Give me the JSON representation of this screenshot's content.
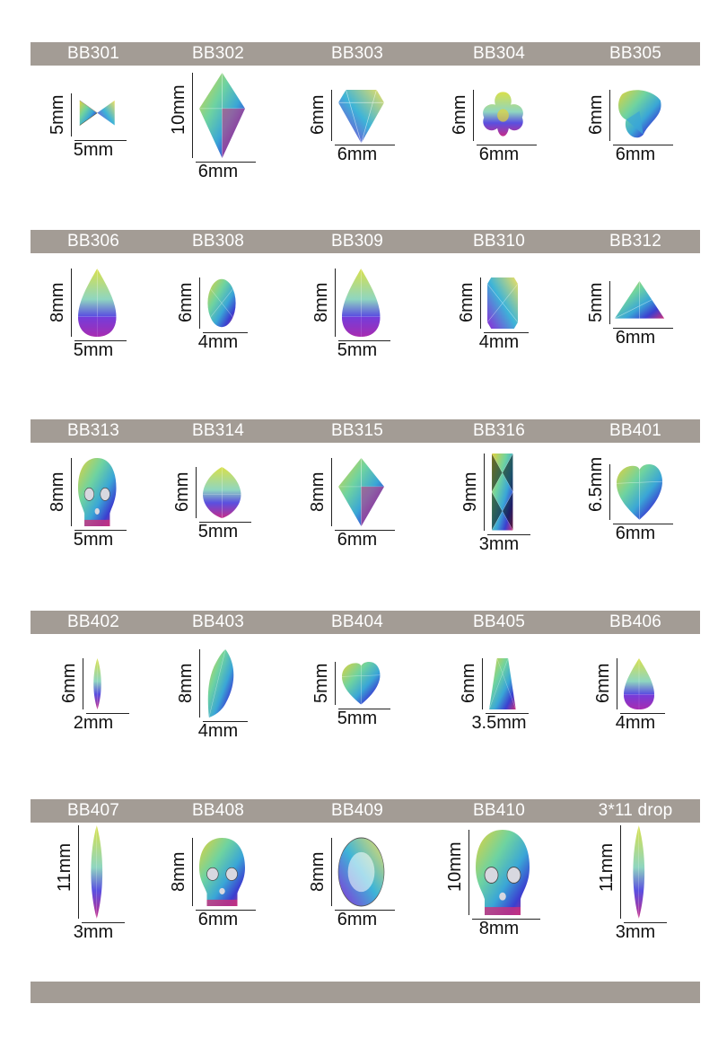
{
  "colors": {
    "band": "#a39c95",
    "band_text": "#ffffff",
    "gem_gold": "#e3d23a",
    "gem_green": "#6fd3a0",
    "gem_cyan": "#3aa6d6",
    "gem_blue": "#3b3fd0",
    "gem_magenta": "#d0307a",
    "gem_purple": "#8a2bd8"
  },
  "rows": [
    {
      "items": [
        {
          "code": "BB301",
          "height": "5mm",
          "width": "5mm",
          "shape": "bowtie"
        },
        {
          "code": "BB302",
          "height": "10mm",
          "width": "6mm",
          "shape": "kite"
        },
        {
          "code": "BB303",
          "height": "6mm",
          "width": "6mm",
          "shape": "diamond"
        },
        {
          "code": "BB304",
          "height": "6mm",
          "width": "6mm",
          "shape": "flower"
        },
        {
          "code": "BB305",
          "height": "6mm",
          "width": "6mm",
          "shape": "trefoil"
        }
      ]
    },
    {
      "items": [
        {
          "code": "BB306",
          "height": "8mm",
          "width": "5mm",
          "shape": "drop"
        },
        {
          "code": "BB308",
          "height": "6mm",
          "width": "4mm",
          "shape": "oval"
        },
        {
          "code": "BB309",
          "height": "8mm",
          "width": "5mm",
          "shape": "drop"
        },
        {
          "code": "BB310",
          "height": "6mm",
          "width": "4mm",
          "shape": "rect"
        },
        {
          "code": "BB312",
          "height": "5mm",
          "width": "6mm",
          "shape": "triangle"
        }
      ]
    },
    {
      "items": [
        {
          "code": "BB313",
          "height": "8mm",
          "width": "5mm",
          "shape": "skull"
        },
        {
          "code": "BB314",
          "height": "6mm",
          "width": "5mm",
          "shape": "marquise"
        },
        {
          "code": "BB315",
          "height": "8mm",
          "width": "6mm",
          "shape": "kite"
        },
        {
          "code": "BB316",
          "height": "9mm",
          "width": "3mm",
          "shape": "baguette"
        },
        {
          "code": "BB401",
          "height": "6.5mm",
          "width": "6mm",
          "shape": "heart"
        }
      ]
    },
    {
      "items": [
        {
          "code": "BB402",
          "height": "6mm",
          "width": "2mm",
          "shape": "navette"
        },
        {
          "code": "BB403",
          "height": "8mm",
          "width": "4mm",
          "shape": "leaf"
        },
        {
          "code": "BB404",
          "height": "5mm",
          "width": "5mm",
          "shape": "heart"
        },
        {
          "code": "BB405",
          "height": "6mm",
          "width": "3.5mm",
          "shape": "trapezoid"
        },
        {
          "code": "BB406",
          "height": "6mm",
          "width": "4mm",
          "shape": "drop"
        }
      ]
    },
    {
      "items": [
        {
          "code": "BB407",
          "height": "11mm",
          "width": "3mm",
          "shape": "navette"
        },
        {
          "code": "BB408",
          "height": "8mm",
          "width": "6mm",
          "shape": "skull"
        },
        {
          "code": "BB409",
          "height": "8mm",
          "width": "6mm",
          "shape": "round"
        },
        {
          "code": "BB410",
          "height": "10mm",
          "width": "8mm",
          "shape": "skull"
        },
        {
          "code": "3*11 drop",
          "height": "11mm",
          "width": "3mm",
          "shape": "navette"
        }
      ]
    }
  ]
}
